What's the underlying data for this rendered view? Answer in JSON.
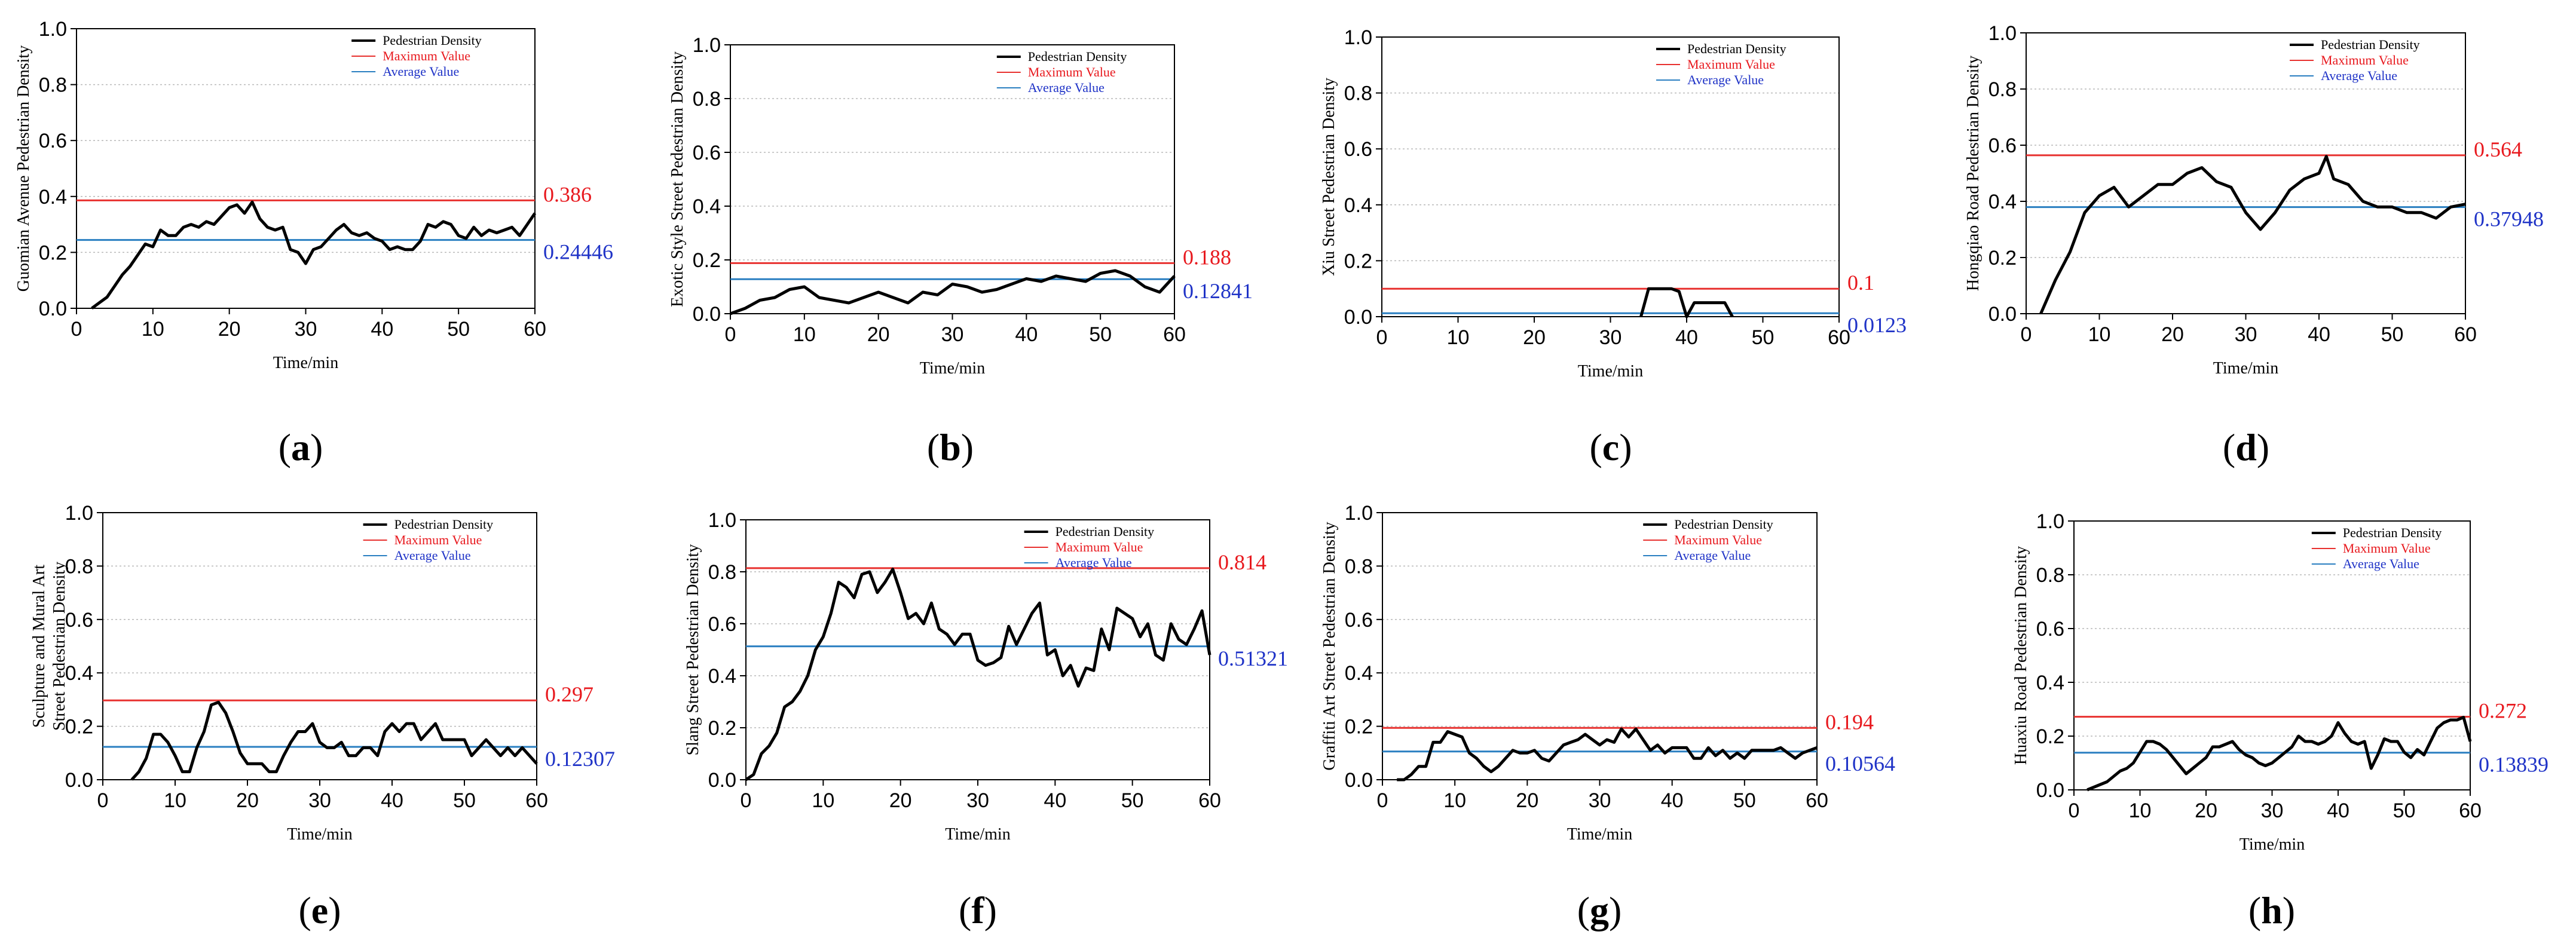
{
  "colors": {
    "density": "#000000",
    "maximum": "#e8312f",
    "average": "#2a7fc1",
    "max_label": "#e8191e",
    "avg_label": "#1f33c7",
    "grid": "#b8b8b8"
  },
  "legend": {
    "density": "Pedestrian Density",
    "maximum": "Maximum Value",
    "average": "Average Value"
  },
  "xlabel": "Time/min",
  "chart_data": [
    {
      "panel": "(a)",
      "type": "line",
      "ylabel": "Guomian Avenue Pedestrian Density",
      "xlim": [
        0,
        60
      ],
      "ylim": [
        0,
        1.0
      ],
      "xticks": [
        "0",
        "10",
        "20",
        "30",
        "40",
        "50",
        "60"
      ],
      "yticks": [
        "0.0",
        "0.2",
        "0.4",
        "0.6",
        "0.8",
        "1.0"
      ],
      "max_value": 0.386,
      "max_label": "0.386",
      "avg_value": 0.24446,
      "avg_label": "0.24446",
      "x": [
        2,
        3,
        4,
        5,
        6,
        7,
        8,
        9,
        10,
        11,
        12,
        13,
        14,
        15,
        16,
        17,
        18,
        19,
        20,
        21,
        22,
        23,
        24,
        25,
        26,
        27,
        28,
        29,
        30,
        31,
        32,
        33,
        34,
        35,
        36,
        37,
        38,
        39,
        40,
        41,
        42,
        43,
        44,
        45,
        46,
        47,
        48,
        49,
        50,
        51,
        52,
        53,
        54,
        55,
        56,
        57,
        58,
        59,
        60
      ],
      "y": [
        0,
        0.02,
        0.04,
        0.08,
        0.12,
        0.15,
        0.19,
        0.23,
        0.22,
        0.28,
        0.26,
        0.26,
        0.29,
        0.3,
        0.29,
        0.31,
        0.3,
        0.33,
        0.36,
        0.37,
        0.34,
        0.38,
        0.32,
        0.29,
        0.28,
        0.29,
        0.21,
        0.2,
        0.16,
        0.21,
        0.22,
        0.25,
        0.28,
        0.3,
        0.27,
        0.26,
        0.27,
        0.25,
        0.24,
        0.21,
        0.22,
        0.21,
        0.21,
        0.24,
        0.3,
        0.29,
        0.31,
        0.3,
        0.26,
        0.25,
        0.29,
        0.26,
        0.28,
        0.27,
        0.28,
        0.29,
        0.26,
        0.3,
        0.34
      ]
    },
    {
      "panel": "(b)",
      "type": "line",
      "ylabel": "Exotic Style Street Pedestrian Density",
      "xlim": [
        0,
        60
      ],
      "ylim": [
        0,
        1.0
      ],
      "xticks": [
        "0",
        "10",
        "20",
        "30",
        "40",
        "50",
        "60"
      ],
      "yticks": [
        "0.0",
        "0.2",
        "0.4",
        "0.6",
        "0.8",
        "1.0"
      ],
      "max_value": 0.188,
      "max_label": "0.188",
      "avg_value": 0.12841,
      "avg_label": "0.12841",
      "x": [
        0,
        2,
        4,
        6,
        8,
        10,
        12,
        14,
        16,
        18,
        20,
        22,
        24,
        26,
        28,
        30,
        32,
        34,
        36,
        38,
        40,
        42,
        44,
        46,
        48,
        50,
        52,
        54,
        56,
        58,
        60
      ],
      "y": [
        0,
        0.02,
        0.05,
        0.06,
        0.09,
        0.1,
        0.06,
        0.05,
        0.04,
        0.06,
        0.08,
        0.06,
        0.04,
        0.08,
        0.07,
        0.11,
        0.1,
        0.08,
        0.09,
        0.11,
        0.13,
        0.12,
        0.14,
        0.13,
        0.12,
        0.15,
        0.16,
        0.14,
        0.1,
        0.08,
        0.14
      ]
    },
    {
      "panel": "(c)",
      "type": "line",
      "ylabel": "Xiu Street Pedestrian Density",
      "xlim": [
        0,
        60
      ],
      "ylim": [
        0,
        1.0
      ],
      "xticks": [
        "0",
        "10",
        "20",
        "30",
        "40",
        "50",
        "60"
      ],
      "yticks": [
        "0.0",
        "0.2",
        "0.4",
        "0.6",
        "0.8",
        "1.0"
      ],
      "max_value": 0.1,
      "max_label": "0.1",
      "avg_value": 0.0123,
      "avg_label": "0.0123",
      "x": [
        34,
        35,
        36,
        37,
        38,
        39,
        40,
        41,
        42,
        43,
        44,
        45,
        46
      ],
      "y": [
        0,
        0.1,
        0.1,
        0.1,
        0.1,
        0.09,
        0,
        0.05,
        0.05,
        0.05,
        0.05,
        0.05,
        0
      ]
    },
    {
      "panel": "(d)",
      "type": "line",
      "ylabel": "Hongqiao Road Pedestrian Density",
      "xlim": [
        0,
        60
      ],
      "ylim": [
        0,
        1.0
      ],
      "xticks": [
        "0",
        "10",
        "20",
        "30",
        "40",
        "50",
        "60"
      ],
      "yticks": [
        "0.0",
        "0.2",
        "0.4",
        "0.6",
        "0.8",
        "1.0"
      ],
      "max_value": 0.564,
      "max_label": "0.564",
      "avg_value": 0.37948,
      "avg_label": "0.37948",
      "x": [
        2,
        4,
        6,
        8,
        10,
        12,
        14,
        16,
        18,
        20,
        22,
        24,
        26,
        28,
        30,
        32,
        34,
        36,
        38,
        40,
        41,
        42,
        44,
        46,
        48,
        50,
        52,
        54,
        56,
        58,
        60
      ],
      "y": [
        0,
        0.12,
        0.22,
        0.36,
        0.42,
        0.45,
        0.38,
        0.42,
        0.46,
        0.46,
        0.5,
        0.52,
        0.47,
        0.45,
        0.36,
        0.3,
        0.36,
        0.44,
        0.48,
        0.5,
        0.56,
        0.48,
        0.46,
        0.4,
        0.38,
        0.38,
        0.36,
        0.36,
        0.34,
        0.38,
        0.39
      ]
    },
    {
      "panel": "(e)",
      "type": "line",
      "ylabel": "Sculpture and Mural Art Street Pedestrian Density",
      "xlim": [
        0,
        60
      ],
      "ylim": [
        0,
        1.0
      ],
      "xticks": [
        "0",
        "10",
        "20",
        "30",
        "40",
        "50",
        "60"
      ],
      "yticks": [
        "0.0",
        "0.2",
        "0.4",
        "0.6",
        "0.8",
        "1.0"
      ],
      "max_value": 0.297,
      "max_label": "0.297",
      "avg_value": 0.12307,
      "avg_label": "0.12307",
      "x": [
        4,
        5,
        6,
        7,
        8,
        9,
        10,
        11,
        12,
        13,
        14,
        15,
        16,
        17,
        18,
        19,
        20,
        21,
        22,
        23,
        24,
        25,
        26,
        27,
        28,
        29,
        30,
        31,
        32,
        33,
        34,
        35,
        36,
        37,
        38,
        39,
        40,
        41,
        42,
        43,
        44,
        45,
        46,
        47,
        48,
        49,
        50,
        51,
        52,
        53,
        54,
        55,
        56,
        57,
        58,
        59,
        60
      ],
      "y": [
        0,
        0.03,
        0.08,
        0.17,
        0.17,
        0.14,
        0.09,
        0.03,
        0.03,
        0.12,
        0.18,
        0.28,
        0.29,
        0.25,
        0.18,
        0.1,
        0.06,
        0.06,
        0.06,
        0.03,
        0.03,
        0.09,
        0.14,
        0.18,
        0.18,
        0.21,
        0.14,
        0.12,
        0.12,
        0.14,
        0.09,
        0.09,
        0.12,
        0.12,
        0.09,
        0.18,
        0.21,
        0.18,
        0.21,
        0.21,
        0.15,
        0.18,
        0.21,
        0.15,
        0.15,
        0.15,
        0.15,
        0.09,
        0.12,
        0.15,
        0.12,
        0.09,
        0.12,
        0.09,
        0.12,
        0.09,
        0.06
      ]
    },
    {
      "panel": "(f)",
      "type": "line",
      "ylabel": "Slang Street Pedestrian Density",
      "xlim": [
        0,
        60
      ],
      "ylim": [
        0,
        1.0
      ],
      "xticks": [
        "0",
        "10",
        "20",
        "30",
        "40",
        "50",
        "60"
      ],
      "yticks": [
        "0.0",
        "0.2",
        "0.4",
        "0.6",
        "0.8",
        "1.0"
      ],
      "max_value": 0.814,
      "max_label": "0.814",
      "avg_value": 0.51321,
      "avg_label": "0.51321",
      "x": [
        0,
        1,
        2,
        3,
        4,
        5,
        6,
        7,
        8,
        9,
        10,
        11,
        12,
        13,
        14,
        15,
        16,
        17,
        18,
        19,
        20,
        21,
        22,
        23,
        24,
        25,
        26,
        27,
        28,
        29,
        30,
        31,
        32,
        33,
        34,
        35,
        36,
        37,
        38,
        39,
        40,
        41,
        42,
        43,
        44,
        45,
        46,
        47,
        48,
        49,
        50,
        51,
        52,
        53,
        54,
        55,
        56,
        57,
        58,
        59,
        60
      ],
      "y": [
        0,
        0.02,
        0.1,
        0.13,
        0.18,
        0.28,
        0.3,
        0.34,
        0.4,
        0.5,
        0.55,
        0.64,
        0.76,
        0.74,
        0.7,
        0.79,
        0.8,
        0.72,
        0.76,
        0.81,
        0.72,
        0.62,
        0.64,
        0.6,
        0.68,
        0.58,
        0.56,
        0.52,
        0.56,
        0.56,
        0.46,
        0.44,
        0.45,
        0.47,
        0.59,
        0.52,
        0.58,
        0.64,
        0.68,
        0.48,
        0.5,
        0.4,
        0.44,
        0.36,
        0.43,
        0.42,
        0.58,
        0.5,
        0.66,
        0.64,
        0.62,
        0.55,
        0.6,
        0.48,
        0.46,
        0.6,
        0.54,
        0.52,
        0.58,
        0.65,
        0.48
      ]
    },
    {
      "panel": "(g)",
      "type": "line",
      "ylabel": "Graffiti Art Street Pedestrian Density",
      "xlim": [
        0,
        60
      ],
      "ylim": [
        0,
        1.0
      ],
      "xticks": [
        "0",
        "10",
        "20",
        "30",
        "40",
        "50",
        "60"
      ],
      "yticks": [
        "0.0",
        "0.2",
        "0.4",
        "0.6",
        "0.8",
        "1.0"
      ],
      "max_value": 0.194,
      "max_label": "0.194",
      "avg_value": 0.10564,
      "avg_label": "0.10564",
      "x": [
        2,
        3,
        4,
        5,
        6,
        7,
        8,
        9,
        10,
        11,
        12,
        13,
        14,
        15,
        16,
        17,
        18,
        19,
        20,
        21,
        22,
        23,
        24,
        25,
        26,
        27,
        28,
        29,
        30,
        31,
        32,
        33,
        34,
        35,
        36,
        37,
        38,
        39,
        40,
        41,
        42,
        43,
        44,
        45,
        46,
        47,
        48,
        49,
        50,
        51,
        52,
        53,
        54,
        55,
        56,
        57,
        58,
        59,
        60
      ],
      "y": [
        0,
        0,
        0.02,
        0.05,
        0.05,
        0.14,
        0.14,
        0.18,
        0.17,
        0.16,
        0.1,
        0.08,
        0.05,
        0.03,
        0.05,
        0.08,
        0.11,
        0.1,
        0.1,
        0.11,
        0.08,
        0.07,
        0.1,
        0.13,
        0.14,
        0.15,
        0.17,
        0.15,
        0.13,
        0.15,
        0.14,
        0.19,
        0.16,
        0.19,
        0.15,
        0.11,
        0.13,
        0.1,
        0.12,
        0.12,
        0.12,
        0.08,
        0.08,
        0.12,
        0.09,
        0.11,
        0.08,
        0.1,
        0.08,
        0.11,
        0.11,
        0.11,
        0.11,
        0.12,
        0.1,
        0.08,
        0.1,
        0.11,
        0.12
      ]
    },
    {
      "panel": "(h)",
      "type": "line",
      "ylabel": "Huaxiu Road Pedestrian Density",
      "xlim": [
        0,
        60
      ],
      "ylim": [
        0,
        1.0
      ],
      "xticks": [
        "0",
        "10",
        "20",
        "30",
        "40",
        "50",
        "60"
      ],
      "yticks": [
        "0.0",
        "0.2",
        "0.4",
        "0.6",
        "0.8",
        "1.0"
      ],
      "max_value": 0.272,
      "max_label": "0.272",
      "avg_value": 0.13839,
      "avg_label": "0.13839",
      "x": [
        2,
        3,
        4,
        5,
        6,
        7,
        8,
        9,
        10,
        11,
        12,
        13,
        14,
        15,
        16,
        17,
        18,
        19,
        20,
        21,
        22,
        23,
        24,
        25,
        26,
        27,
        28,
        29,
        30,
        31,
        32,
        33,
        34,
        35,
        36,
        37,
        38,
        39,
        40,
        41,
        42,
        43,
        44,
        45,
        46,
        47,
        48,
        49,
        50,
        51,
        52,
        53,
        54,
        55,
        56,
        57,
        58,
        59,
        60
      ],
      "y": [
        0,
        0.01,
        0.02,
        0.03,
        0.05,
        0.07,
        0.08,
        0.1,
        0.14,
        0.18,
        0.18,
        0.17,
        0.15,
        0.12,
        0.09,
        0.06,
        0.08,
        0.1,
        0.12,
        0.16,
        0.16,
        0.17,
        0.18,
        0.15,
        0.13,
        0.12,
        0.1,
        0.09,
        0.1,
        0.12,
        0.14,
        0.16,
        0.2,
        0.18,
        0.18,
        0.17,
        0.18,
        0.2,
        0.25,
        0.21,
        0.18,
        0.17,
        0.18,
        0.08,
        0.13,
        0.19,
        0.18,
        0.18,
        0.14,
        0.12,
        0.15,
        0.13,
        0.18,
        0.23,
        0.25,
        0.26,
        0.26,
        0.27,
        0.18
      ]
    }
  ]
}
